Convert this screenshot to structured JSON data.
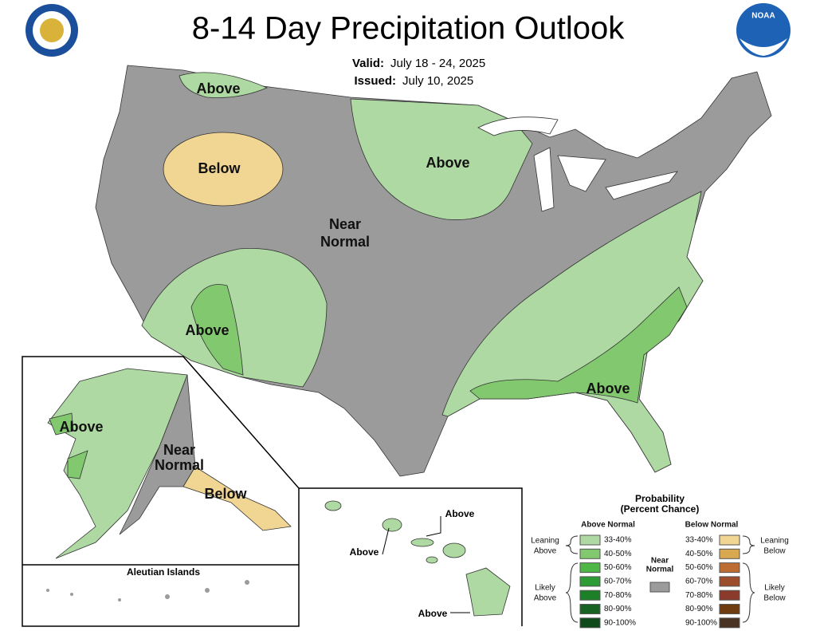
{
  "header": {
    "title": "8-14 Day Precipitation Outlook",
    "valid_label": "Valid:",
    "valid_dates": "July 18 - 24, 2025",
    "issued_label": "Issued:",
    "issued_date": "July 10, 2025",
    "noaa_logo": "NOAA"
  },
  "map_labels": {
    "conus": [
      [
        "Above"
      ],
      [
        "Below"
      ],
      [
        "Above"
      ],
      [
        "Near",
        "Normal"
      ],
      [
        "Above"
      ],
      [
        "Above"
      ]
    ],
    "alaska": [
      [
        "Above"
      ],
      [
        "Near",
        "Normal"
      ],
      [
        "Below"
      ]
    ],
    "aleutian_title": "Aleutian Islands",
    "hawaii": [
      [
        "Above"
      ],
      [
        "Above"
      ],
      [
        "Above"
      ]
    ]
  },
  "legend": {
    "title": [
      "Probability",
      "(Percent Chance)"
    ],
    "above_normal": {
      "heading": "Above Normal",
      "items": [
        {
          "range": "33-40%",
          "color": "#aed9a3"
        },
        {
          "range": "40-50%",
          "color": "#82c86f"
        },
        {
          "range": "50-60%",
          "color": "#4db845"
        },
        {
          "range": "60-70%",
          "color": "#2e9c35"
        },
        {
          "range": "70-80%",
          "color": "#1c8028"
        },
        {
          "range": "80-90%",
          "color": "#186224"
        },
        {
          "range": "90-100%",
          "color": "#0f4a1a"
        }
      ]
    },
    "below_normal": {
      "heading": "Below Normal",
      "items": [
        {
          "range": "33-40%",
          "color": "#f1d593"
        },
        {
          "range": "40-50%",
          "color": "#d9a952"
        },
        {
          "range": "50-60%",
          "color": "#bd6d33"
        },
        {
          "range": "60-70%",
          "color": "#9c4d2e"
        },
        {
          "range": "70-80%",
          "color": "#8a3b2b"
        },
        {
          "range": "80-90%",
          "color": "#6f3c12"
        },
        {
          "range": "90-100%",
          "color": "#4a3322"
        }
      ]
    },
    "near_normal": {
      "label": [
        "Near",
        "Normal"
      ],
      "color": "#9b9b9b"
    },
    "groups": {
      "leaning_above": [
        "Leaning",
        "Above"
      ],
      "likely_above": [
        "Likely",
        "Above"
      ],
      "leaning_below": [
        "Leaning",
        "Below"
      ],
      "likely_below": [
        "Likely",
        "Below"
      ]
    }
  }
}
